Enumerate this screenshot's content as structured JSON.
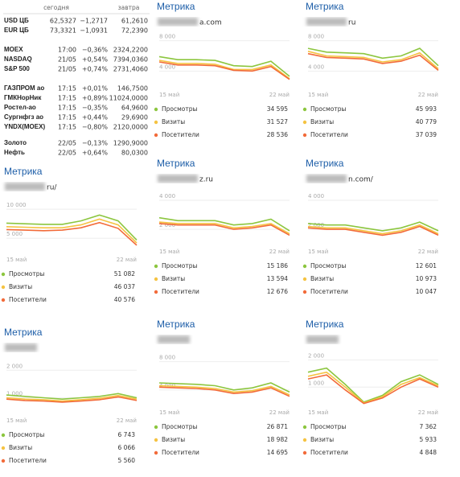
{
  "quotes": {
    "header": [
      "сегодня",
      "завтра"
    ],
    "groups": [
      [
        [
          "USD ЦБ",
          "62,5327",
          "−1,2717",
          "61,2610"
        ],
        [
          "EUR ЦБ",
          "73,3321",
          "−1,0931",
          "72,2390"
        ]
      ],
      [
        [
          "MOEX",
          "17:00",
          "−0,36%",
          "2324,2200"
        ],
        [
          "NASDAQ",
          "21/05",
          "+0,54%",
          "7394,0360"
        ],
        [
          "S&P 500",
          "21/05",
          "+0,74%",
          "2731,4060"
        ]
      ],
      [
        [
          "ГАЗПРОМ ао",
          "17:15",
          "+0,01%",
          "146,7500"
        ],
        [
          "ГМКНорНик",
          "17:15",
          "+0,89%",
          "11024,0000"
        ],
        [
          "Ростел-ао",
          "17:15",
          "−0,35%",
          "64,9600"
        ],
        [
          "Сургнфгз ао",
          "17:15",
          "+0,44%",
          "29,6900"
        ],
        [
          "YNDX(MOEX)",
          "17:15",
          "−0,80%",
          "2120,0000"
        ]
      ],
      [
        [
          "Золото",
          "22/05",
          "−0,13%",
          "1290,9000"
        ],
        [
          "Нефть",
          "22/05",
          "+0,64%",
          "80,0300"
        ]
      ]
    ]
  },
  "widgets": [
    {
      "title": "Метрика",
      "site": "a.com",
      "chart": {
        "type": "line",
        "categories": [
          "15 май",
          null,
          null,
          null,
          null,
          null,
          null,
          "22 май"
        ],
        "ylim": [
          1700,
          8600
        ],
        "yticks": [
          {
            "value": 4000,
            "label": "4 000"
          },
          {
            "value": 8000,
            "label": "8 000"
          }
        ],
        "series": [
          {
            "name": "Просмотры",
            "color": "#8cc63f",
            "values": [
              5900,
              5500,
              5500,
              5400,
              4700,
              4600,
              5300,
              3300
            ],
            "total": "34 595"
          },
          {
            "name": "Визиты",
            "color": "#f5c342",
            "values": [
              5400,
              5000,
              5000,
              4900,
              4200,
              4200,
              4800,
              3000
            ],
            "total": "31 527"
          },
          {
            "name": "Посетители",
            "color": "#f26b3a",
            "values": [
              5200,
              4800,
              4800,
              4700,
              4100,
              4000,
              4600,
              2900
            ],
            "total": "28 536"
          }
        ]
      }
    },
    {
      "title": "Метрика",
      "site": "ru",
      "chart": {
        "type": "line",
        "categories": [
          "15 май",
          null,
          null,
          null,
          null,
          null,
          null,
          "22 май"
        ],
        "ylim": [
          1700,
          8600
        ],
        "yticks": [
          {
            "value": 4000,
            "label": "4 000"
          },
          {
            "value": 8000,
            "label": "8 000"
          }
        ],
        "series": [
          {
            "name": "Просмотры",
            "color": "#8cc63f",
            "values": [
              7000,
              6500,
              6400,
              6300,
              5700,
              6000,
              7000,
              4700
            ],
            "total": "45 993"
          },
          {
            "name": "Визиты",
            "color": "#f5c342",
            "values": [
              6600,
              6000,
              5900,
              5800,
              5200,
              5500,
              6400,
              4300
            ],
            "total": "40 779"
          },
          {
            "name": "Посетители",
            "color": "#f26b3a",
            "values": [
              6300,
              5800,
              5700,
              5600,
              5000,
              5300,
              6100,
              4100
            ],
            "total": "37 039"
          }
        ]
      }
    },
    {
      "title": "Метрика",
      "site": "ru/",
      "chart": {
        "type": "line",
        "categories": [
          "15 май",
          null,
          null,
          null,
          null,
          null,
          null,
          "22 май"
        ],
        "ylim": [
          2400,
          11400
        ],
        "yticks": [
          {
            "value": 5000,
            "label": "5 000"
          },
          {
            "value": 10000,
            "label": "10 000"
          }
        ],
        "series": [
          {
            "name": "Просмотры",
            "color": "#8cc63f",
            "values": [
              7600,
              7500,
              7400,
              7400,
              8000,
              9000,
              8000,
              4700
            ],
            "total": "51 082"
          },
          {
            "name": "Визиты",
            "color": "#f5c342",
            "values": [
              7000,
              6900,
              6800,
              6800,
              7300,
              8300,
              7300,
              4200
            ],
            "total": "46 037"
          },
          {
            "name": "Посетители",
            "color": "#f26b3a",
            "values": [
              6500,
              6400,
              6300,
              6400,
              6800,
              7700,
              6700,
              3800
            ],
            "total": "40 576"
          }
        ]
      }
    },
    {
      "title": "Метрика",
      "site": "z.ru",
      "chart": {
        "type": "line",
        "categories": [
          "15 май",
          null,
          null,
          null,
          null,
          null,
          null,
          "22 май"
        ],
        "ylim": [
          900,
          4500
        ],
        "yticks": [
          {
            "value": 2000,
            "label": "2 000"
          },
          {
            "value": 4000,
            "label": "4 000"
          }
        ],
        "series": [
          {
            "name": "Просмотры",
            "color": "#8cc63f",
            "values": [
              2800,
              2600,
              2600,
              2600,
              2300,
              2400,
              2700,
              1900
            ],
            "total": "15 186"
          },
          {
            "name": "Визиты",
            "color": "#f5c342",
            "values": [
              2500,
              2400,
              2400,
              2400,
              2100,
              2200,
              2400,
              1700
            ],
            "total": "13 594"
          },
          {
            "name": "Посетители",
            "color": "#f26b3a",
            "values": [
              2400,
              2300,
              2300,
              2300,
              2000,
              2100,
              2300,
              1600
            ],
            "total": "12 676"
          }
        ]
      }
    },
    {
      "title": "Метрика",
      "site": "n.com/",
      "chart": {
        "type": "line",
        "categories": [
          "15 май",
          null,
          null,
          null,
          null,
          null,
          null,
          "22 май"
        ],
        "ylim": [
          900,
          4500
        ],
        "yticks": [
          {
            "value": 2000,
            "label": "2 000"
          },
          {
            "value": 4000,
            "label": "4 000"
          }
        ],
        "series": [
          {
            "name": "Просмотры",
            "color": "#8cc63f",
            "values": [
              2400,
              2300,
              2300,
              2100,
              1900,
              2100,
              2500,
              1900
            ],
            "total": "12 601"
          },
          {
            "name": "Визиты",
            "color": "#f5c342",
            "values": [
              2200,
              2100,
              2100,
              1900,
              1700,
              1900,
              2300,
              1700
            ],
            "total": "10 973"
          },
          {
            "name": "Посетители",
            "color": "#f26b3a",
            "values": [
              2100,
              2000,
              2000,
              1800,
              1600,
              1800,
              2200,
              1600
            ],
            "total": "10 047"
          }
        ]
      }
    },
    {
      "title": "Метрика",
      "chart": {
        "type": "line",
        "categories": [
          "15 май",
          null,
          null,
          null,
          null,
          null,
          null,
          "22 май"
        ],
        "ylim": [
          400,
          2300
        ],
        "yticks": [
          {
            "value": 1000,
            "label": "1 000"
          },
          {
            "value": 2000,
            "label": "2 000"
          }
        ],
        "series": [
          {
            "name": "Просмотры",
            "color": "#8cc63f",
            "values": [
              1100,
              1050,
              1000,
              950,
              1000,
              1050,
              1150,
              1000
            ],
            "total": "6 743"
          },
          {
            "name": "Визиты",
            "color": "#f5c342",
            "values": [
              1000,
              950,
              930,
              880,
              930,
              980,
              1080,
              950
            ],
            "total": "6 066"
          },
          {
            "name": "Посетители",
            "color": "#f26b3a",
            "values": [
              950,
              900,
              880,
              840,
              880,
              930,
              1030,
              900
            ],
            "total": "5 560"
          }
        ]
      }
    },
    {
      "title": "Метрика",
      "chart": {
        "type": "line",
        "categories": [
          "15 май",
          null,
          null,
          null,
          null,
          null,
          null,
          "22 май"
        ],
        "ylim": [
          1700,
          9100
        ],
        "yticks": [
          {
            "value": 4000,
            "label": "4 000"
          },
          {
            "value": 8000,
            "label": "8 000"
          }
        ],
        "series": [
          {
            "name": "Просмотры",
            "color": "#8cc63f",
            "values": [
              5000,
              4900,
              4800,
              4600,
              4000,
              4300,
              5000,
              3700
            ],
            "total": "26 871"
          },
          {
            "name": "Визиты",
            "color": "#f5c342",
            "values": [
              4600,
              4500,
              4400,
              4200,
              3700,
              3900,
              4500,
              3300
            ],
            "total": "18 982"
          },
          {
            "name": "Посетители",
            "color": "#f26b3a",
            "values": [
              4400,
              4300,
              4200,
              4000,
              3500,
              3700,
              4300,
              3100
            ],
            "total": "14 695"
          }
        ]
      }
    },
    {
      "title": "Метрика",
      "chart": {
        "type": "line",
        "categories": [
          "15 май",
          null,
          null,
          null,
          null,
          null,
          null,
          "22 май"
        ],
        "ylim": [
          300,
          2220
        ],
        "yticks": [
          {
            "value": 1000,
            "label": "1 000"
          },
          {
            "value": 2000,
            "label": "2 000"
          }
        ],
        "series": [
          {
            "name": "Просмотры",
            "color": "#8cc63f",
            "values": [
              1550,
              1700,
              1100,
              450,
              700,
              1200,
              1450,
              1100
            ],
            "total": "7 362"
          },
          {
            "name": "Визиты",
            "color": "#f5c342",
            "values": [
              1400,
              1550,
              1000,
              420,
              650,
              1100,
              1350,
              1050
            ],
            "total": "5 933"
          },
          {
            "name": "Посетители",
            "color": "#f26b3a",
            "values": [
              1300,
              1450,
              900,
              400,
              600,
              1000,
              1300,
              1000
            ],
            "total": "4 848"
          }
        ]
      }
    }
  ]
}
